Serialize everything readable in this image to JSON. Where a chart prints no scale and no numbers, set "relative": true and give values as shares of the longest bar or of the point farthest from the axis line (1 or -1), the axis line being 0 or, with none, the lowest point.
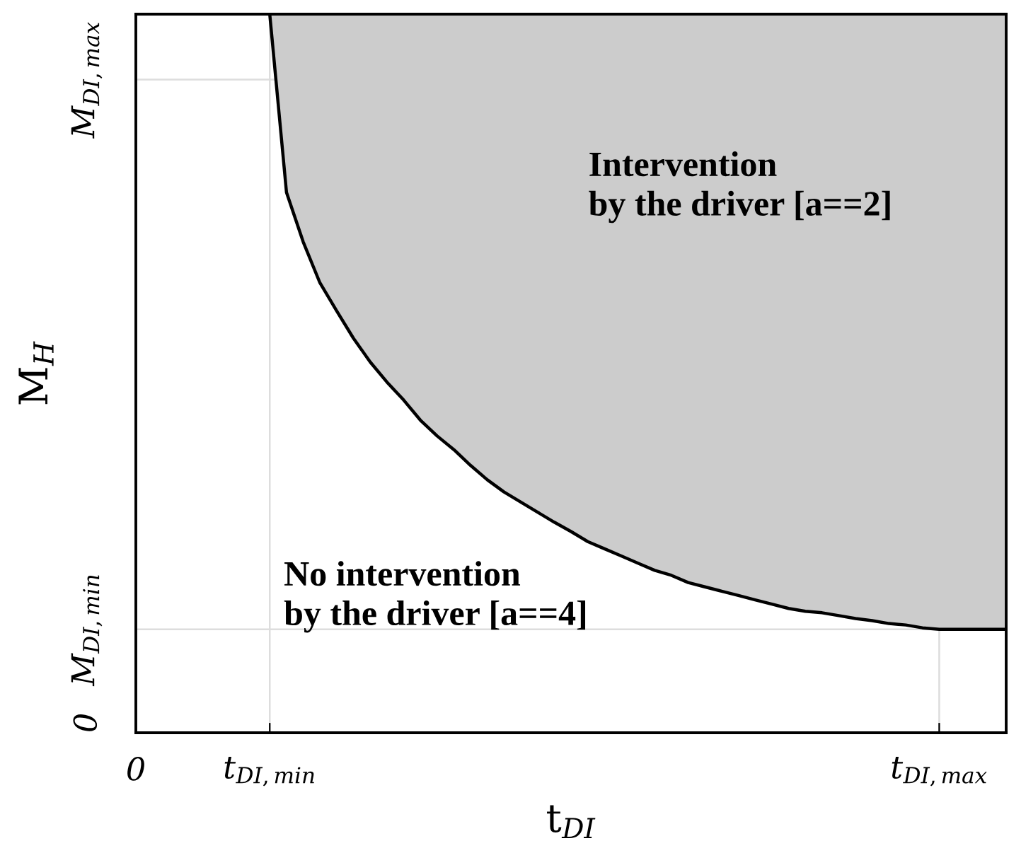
{
  "chart_data": {
    "type": "line",
    "xlabel": "t$_{DI}$",
    "ylabel": "M$_{H}$",
    "relative": true,
    "categories": [
      "0",
      null,
      null,
      null,
      null,
      null,
      null,
      null,
      "t$_{DI,min}$",
      null,
      null,
      null,
      null,
      null,
      null,
      null,
      null,
      null,
      null,
      null,
      null,
      null,
      null,
      null,
      null,
      null,
      null,
      null,
      null,
      null,
      null,
      null,
      null,
      null,
      null,
      null,
      null,
      null,
      null,
      null,
      null,
      null,
      null,
      null,
      null,
      null,
      null,
      null,
      "t$_{DI,max}$",
      null,
      null,
      null,
      null
    ],
    "series": [
      {
        "color": "#000000",
        "values": [
          null,
          null,
          null,
          null,
          null,
          null,
          null,
          null,
          1.0,
          0.752,
          0.683,
          0.626,
          0.587,
          0.549,
          0.516,
          0.488,
          0.463,
          0.435,
          0.413,
          0.394,
          0.372,
          0.352,
          0.335,
          0.321,
          0.307,
          0.293,
          0.28,
          0.266,
          0.256,
          0.246,
          0.236,
          0.226,
          0.219,
          0.209,
          0.203,
          0.197,
          0.191,
          0.185,
          0.179,
          0.173,
          0.169,
          0.167,
          0.163,
          0.159,
          0.156,
          0.152,
          0.15,
          0.146,
          0.144,
          0.144,
          0.144,
          0.144,
          0.144
        ],
        "lower": [
          null,
          null,
          null,
          null,
          null,
          null,
          null,
          null,
          1.0,
          0.752,
          0.683,
          0.626,
          0.587,
          0.549,
          0.516,
          0.488,
          0.463,
          0.435,
          0.413,
          0.394,
          0.372,
          0.352,
          0.335,
          0.321,
          0.307,
          0.293,
          0.28,
          0.266,
          0.256,
          0.246,
          0.236,
          0.226,
          0.219,
          0.209,
          0.203,
          0.197,
          0.191,
          0.185,
          0.179,
          0.173,
          0.169,
          0.167,
          0.163,
          0.159,
          0.156,
          0.152,
          0.15,
          0.146,
          0.144,
          0.144,
          0.144,
          0.144,
          0.144
        ],
        "upper": [
          null,
          null,
          null,
          null,
          null,
          null,
          null,
          null,
          1.0,
          1.0,
          1.0,
          1.0,
          1.0,
          1.0,
          1.0,
          1.0,
          1.0,
          1.0,
          1.0,
          1.0,
          1.0,
          1.0,
          1.0,
          1.0,
          1.0,
          1.0,
          1.0,
          1.0,
          1.0,
          1.0,
          1.0,
          1.0,
          1.0,
          1.0,
          1.0,
          1.0,
          1.0,
          1.0,
          1.0,
          1.0,
          1.0,
          1.0,
          1.0,
          1.0,
          1.0,
          1.0,
          1.0,
          1.0,
          1.0,
          1.0,
          1.0,
          1.0,
          1.0
        ]
      }
    ],
    "ref_lines": [
      {
        "axis": "y",
        "value": 0.144,
        "label": "M$_{DI,min}$",
        "color": "#dddddd"
      },
      {
        "axis": "y",
        "value": 0.909,
        "label": "M$_{DI,max}$",
        "color": "#dddddd"
      }
    ],
    "grid": "x",
    "line_style": "solid",
    "annotations": [
      "Intervention\nby the driver [a==2]",
      "No intervention\nby the driver [a==4]",
      "0"
    ]
  }
}
